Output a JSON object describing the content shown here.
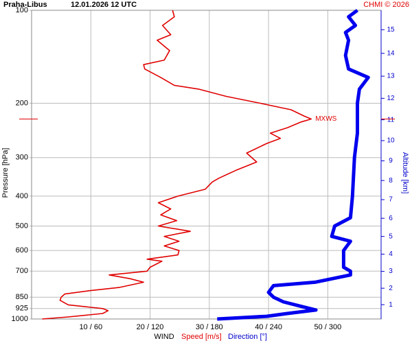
{
  "chart_data": {
    "type": "line",
    "station": "Praha-Libus",
    "title": "12.01.2026 12 UTC",
    "credit": "CHMI © 2026",
    "ylabel": "Pressure [hPa]",
    "y2label": "Altitude [km]",
    "xlabel": "WIND",
    "annotation": "MXWS",
    "log_y": true,
    "grid": true,
    "ylim": [
      1000,
      100
    ],
    "yticks": [
      100,
      200,
      300,
      400,
      500,
      600,
      700,
      850,
      925,
      1000
    ],
    "xlim": [
      0,
      59
    ],
    "x2lim": [
      0,
      354
    ],
    "xticks": [
      {
        "value": 10,
        "label": "10 / 60"
      },
      {
        "value": 20,
        "label": "20 / 120"
      },
      {
        "value": 30,
        "label": "30 / 180"
      },
      {
        "value": 40,
        "label": "40 / 240"
      },
      {
        "value": 50,
        "label": "50 / 300"
      }
    ],
    "y2ticks": [
      1,
      2,
      3,
      4,
      5,
      6,
      7,
      8,
      9,
      10,
      11,
      12,
      13,
      14,
      15
    ],
    "series": [
      {
        "name": "Speed [m/s]",
        "color": "#e00000",
        "pressure": [
          1000,
          985,
          960,
          940,
          925,
          900,
          870,
          850,
          830,
          810,
          790,
          760,
          740,
          720,
          700,
          680,
          650,
          640,
          620,
          600,
          580,
          560,
          540,
          520,
          500,
          480,
          460,
          440,
          420,
          400,
          380,
          360,
          350,
          330,
          310,
          290,
          270,
          260,
          250,
          240,
          230,
          225,
          220,
          210,
          200,
          190,
          180,
          175,
          165,
          155,
          150,
          145,
          135,
          125,
          120,
          112,
          105,
          100
        ],
        "values": [
          1.8,
          6.2,
          12,
          12.9,
          12,
          6.2,
          4.8,
          5,
          5.6,
          9.7,
          14.9,
          18.9,
          16.6,
          13.1,
          19.5,
          20,
          22,
          19.5,
          24.7,
          24.9,
          22.4,
          24.9,
          22.4,
          26.8,
          21.4,
          24.5,
          21.8,
          23.5,
          21.4,
          24.7,
          29.3,
          30.5,
          31.6,
          34.5,
          38,
          36.3,
          39.7,
          42,
          40.3,
          43.2,
          45.5,
          47.2,
          46,
          43.8,
          38.6,
          32.8,
          28.2,
          24.1,
          21.8,
          19.1,
          18.9,
          22.4,
          23.3,
          21.2,
          23.5,
          22.1,
          24.1,
          23.8
        ]
      },
      {
        "name": "Direction [°]",
        "color": "#0000ee",
        "axis": "x2",
        "pressure": [
          1000,
          980,
          960,
          935,
          910,
          880,
          850,
          820,
          780,
          760,
          720,
          700,
          680,
          600,
          560,
          540,
          500,
          470,
          400,
          300,
          250,
          200,
          180,
          165,
          155,
          140,
          125,
          118,
          112,
          105,
          100
        ],
        "values": [
          188,
          238,
          259,
          288,
          273,
          255,
          245,
          240,
          245,
          287,
          323,
          323,
          316,
          316,
          323,
          304,
          307,
          323,
          325,
          327,
          330,
          330,
          332,
          341,
          321,
          318,
          321,
          318,
          328,
          321,
          330
        ]
      }
    ]
  }
}
